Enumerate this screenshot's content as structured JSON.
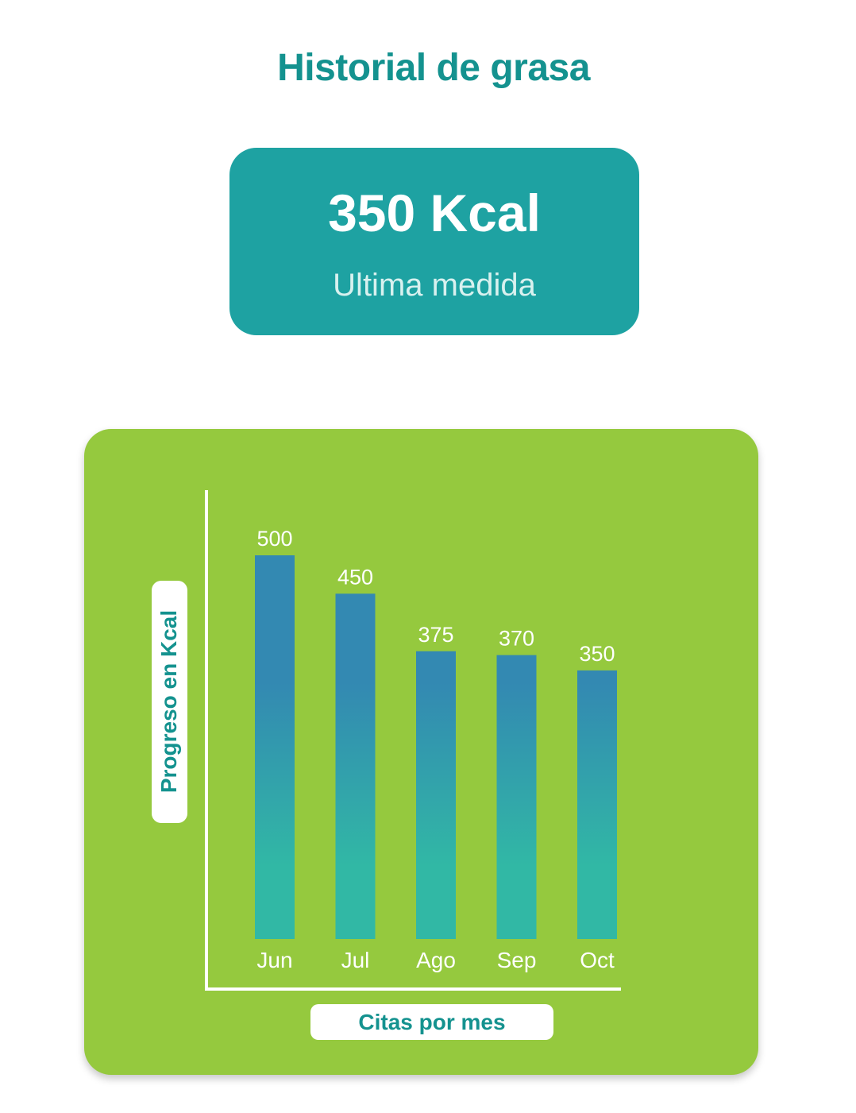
{
  "page": {
    "title": "Historial de grasa"
  },
  "stat": {
    "value": "350 Kcal",
    "caption": "Ultima medida"
  },
  "colors": {
    "title": "#14928f",
    "stat_card": "#1ea2a2",
    "chart_card": "#95c93e",
    "bar_top": "#3389b2",
    "bar_bottom": "#31b8a5",
    "axis": "#ffffff"
  },
  "chart_data": {
    "type": "bar",
    "title": "",
    "categories": [
      "Jun",
      "Jul",
      "Ago",
      "Sep",
      "Oct"
    ],
    "values": [
      500,
      450,
      375,
      370,
      350
    ],
    "data_labels": [
      "500",
      "450",
      "375",
      "370",
      "350"
    ],
    "xlabel": "Citas por mes",
    "ylabel": "Progreso en Kcal",
    "grid": false,
    "legend": "none"
  }
}
